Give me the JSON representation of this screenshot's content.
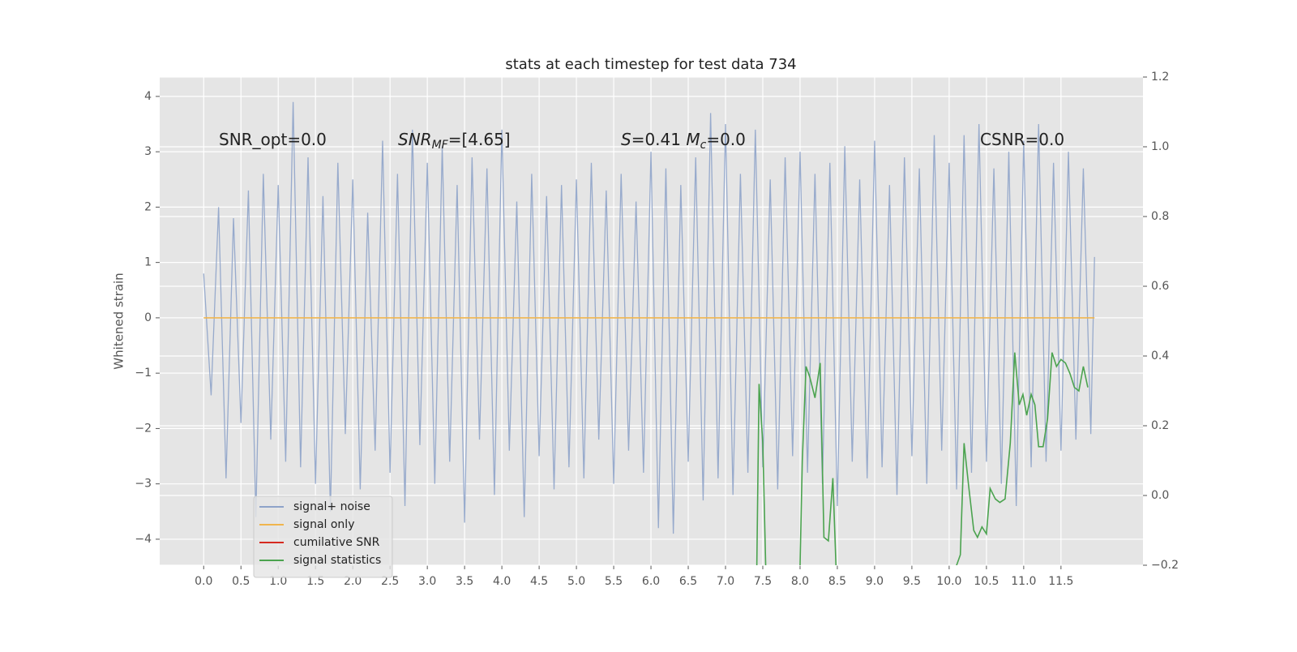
{
  "chart_data": {
    "type": "line",
    "title": "stats at each timestep for test data 734",
    "ylabel": "Whitened strain",
    "grid": true,
    "legend": "lower left",
    "annotations": [
      [
        {
          "text": "SNR_opt=0.0"
        }
      ],
      [
        {
          "text": "SNR",
          "italic": true
        },
        {
          "text": "MF",
          "italic": true,
          "sub": true
        },
        {
          "text": "=[4.65]"
        }
      ],
      [
        {
          "text": "S",
          "italic": true
        },
        {
          "text": "=0.41   "
        },
        {
          "text": "M",
          "italic": true
        },
        {
          "text": "c",
          "italic": true,
          "sub": true
        },
        {
          "text": "=0.0"
        }
      ],
      [
        {
          "text": "CSNR=0.0"
        }
      ]
    ],
    "xlim": [
      -0.59,
      12.6
    ],
    "ylim": [
      -4.47,
      4.35
    ],
    "y2lim": [
      -0.2,
      1.2
    ],
    "xticks": [
      {
        "value": 0,
        "label": "0.0"
      },
      {
        "value": 0.5,
        "label": "0.5"
      },
      {
        "value": 1,
        "label": "1.0"
      },
      {
        "value": 1.5,
        "label": "1.5"
      },
      {
        "value": 2,
        "label": "2.0"
      },
      {
        "value": 2.5,
        "label": "2.5"
      },
      {
        "value": 3,
        "label": "3.0"
      },
      {
        "value": 3.5,
        "label": "3.5"
      },
      {
        "value": 4,
        "label": "4.0"
      },
      {
        "value": 4.5,
        "label": "4.5"
      },
      {
        "value": 5,
        "label": "5.0"
      },
      {
        "value": 5.5,
        "label": "5.5"
      },
      {
        "value": 6,
        "label": "6.0"
      },
      {
        "value": 6.5,
        "label": "6.5"
      },
      {
        "value": 7,
        "label": "7.0"
      },
      {
        "value": 7.5,
        "label": "7.5"
      },
      {
        "value": 8,
        "label": "8.0"
      },
      {
        "value": 8.5,
        "label": "8.5"
      },
      {
        "value": 9,
        "label": "9.0"
      },
      {
        "value": 9.5,
        "label": "9.5"
      },
      {
        "value": 10,
        "label": "10.0"
      },
      {
        "value": 10.5,
        "label": "10.5"
      },
      {
        "value": 11,
        "label": "11.0"
      },
      {
        "value": 11.5,
        "label": "11.5"
      }
    ],
    "yticks": [
      {
        "value": -4,
        "label": "−4"
      },
      {
        "value": -3,
        "label": "−3"
      },
      {
        "value": -2,
        "label": "−2"
      },
      {
        "value": -1,
        "label": "−1"
      },
      0,
      1,
      2,
      3,
      4
    ],
    "y2ticks": [
      {
        "value": -0.2,
        "label": "−0.2"
      },
      {
        "value": 0,
        "label": "0.0"
      },
      {
        "value": 0.2,
        "label": "0.2"
      },
      {
        "value": 0.4,
        "label": "0.4"
      },
      {
        "value": 0.6,
        "label": "0.6"
      },
      {
        "value": 0.8,
        "label": "0.8"
      },
      {
        "value": 1,
        "label": "1.0"
      },
      {
        "value": 1.2,
        "label": "1.2"
      }
    ],
    "series": [
      {
        "name": "signal+ noise",
        "color": "#8ea3c9",
        "x": [
          0,
          0.1,
          0.2,
          0.3,
          0.4,
          0.5,
          0.6,
          0.7,
          0.8,
          0.9,
          1,
          1.1,
          1.2,
          1.3,
          1.4,
          1.5,
          1.6,
          1.7,
          1.8,
          1.9,
          2,
          2.1,
          2.2,
          2.3,
          2.4,
          2.5,
          2.6,
          2.7,
          2.8,
          2.9,
          3,
          3.1,
          3.2,
          3.3,
          3.4,
          3.5,
          3.6,
          3.7,
          3.8,
          3.9,
          4,
          4.1,
          4.2,
          4.3,
          4.4,
          4.5,
          4.6,
          4.7,
          4.8,
          4.9,
          5,
          5.1,
          5.2,
          5.3,
          5.4,
          5.5,
          5.6,
          5.7,
          5.8,
          5.9,
          6,
          6.1,
          6.2,
          6.3,
          6.4,
          6.5,
          6.6,
          6.7,
          6.8,
          6.9,
          7,
          7.1,
          7.2,
          7.3,
          7.4,
          7.5,
          7.6,
          7.7,
          7.8,
          7.9,
          8,
          8.1,
          8.2,
          8.3,
          8.4,
          8.5,
          8.6,
          8.7,
          8.8,
          8.9,
          9,
          9.1,
          9.2,
          9.3,
          9.4,
          9.5,
          9.6,
          9.7,
          9.8,
          9.9,
          10,
          10.1,
          10.2,
          10.3,
          10.4,
          10.5,
          10.6,
          10.7,
          10.8,
          10.9,
          11,
          11.1,
          11.2,
          11.3,
          11.4,
          11.5,
          11.6,
          11.7,
          11.8,
          11.9,
          11.95
        ],
        "values": [
          0.8,
          -1.4,
          2.0,
          -2.9,
          1.8,
          -1.9,
          2.3,
          -3.6,
          2.6,
          -2.2,
          2.4,
          -2.6,
          3.9,
          -2.7,
          2.9,
          -3.0,
          2.2,
          -3.5,
          2.8,
          -2.1,
          2.5,
          -3.1,
          1.9,
          -2.4,
          3.2,
          -2.8,
          2.6,
          -3.4,
          3.4,
          -2.3,
          2.8,
          -3.0,
          3.1,
          -2.6,
          2.4,
          -3.7,
          2.9,
          -2.2,
          2.7,
          -3.2,
          3.4,
          -2.4,
          2.1,
          -3.6,
          2.6,
          -2.5,
          2.2,
          -3.1,
          2.4,
          -2.7,
          2.5,
          -2.9,
          2.8,
          -2.2,
          2.3,
          -3.0,
          2.6,
          -2.4,
          2.1,
          -2.8,
          3.0,
          -3.8,
          2.7,
          -3.9,
          2.4,
          -2.6,
          2.9,
          -3.3,
          3.7,
          -2.9,
          3.5,
          -3.2,
          2.6,
          -2.8,
          3.4,
          -2.7,
          2.5,
          -3.1,
          2.9,
          -2.5,
          3.0,
          -2.8,
          2.6,
          -3.0,
          2.8,
          -3.4,
          3.1,
          -2.6,
          2.5,
          -2.9,
          3.2,
          -2.7,
          2.4,
          -3.2,
          2.9,
          -2.5,
          2.7,
          -3.0,
          3.3,
          -2.4,
          2.8,
          -3.1,
          3.3,
          -2.8,
          3.5,
          -2.6,
          2.7,
          -3.0,
          3.0,
          -3.4,
          3.2,
          -2.7,
          3.5,
          -2.6,
          2.8,
          -2.4,
          3.0,
          -2.2,
          2.7,
          -2.1,
          1.1
        ]
      },
      {
        "name": "signal only",
        "color": "#f0b54d",
        "x": [
          0,
          11.95
        ],
        "values": [
          0,
          0
        ]
      },
      {
        "name": "cumilative SNR",
        "color": "#d62a20",
        "x": [],
        "values": []
      },
      {
        "name": "signal statistics",
        "color": "#4ba34f",
        "axis": "y2",
        "x": [
          7.35,
          7.42,
          7.45,
          7.5,
          7.55,
          7.6,
          7.65,
          7.7,
          8.0,
          8.03,
          8.08,
          8.13,
          8.2,
          8.27,
          8.32,
          8.38,
          8.44,
          8.49,
          9.3,
          10.1,
          10.15,
          10.2,
          10.26,
          10.33,
          10.38,
          10.44,
          10.5,
          10.55,
          10.62,
          10.68,
          10.75,
          10.82,
          10.88,
          10.94,
          10.99,
          11.04,
          11.1,
          11.15,
          11.2,
          11.26,
          11.32,
          11.38,
          11.44,
          11.5,
          11.56,
          11.62,
          11.68,
          11.74,
          11.8,
          11.86
        ],
        "values": [
          -0.35,
          -0.2,
          0.32,
          0.15,
          -0.3,
          -0.25,
          -0.22,
          -0.35,
          -0.2,
          0.1,
          0.37,
          0.34,
          0.28,
          0.38,
          -0.12,
          -0.13,
          0.05,
          -0.25,
          -0.5,
          -0.2,
          -0.17,
          0.15,
          0.03,
          -0.1,
          -0.12,
          -0.09,
          -0.11,
          0.02,
          -0.01,
          -0.02,
          -0.01,
          0.15,
          0.41,
          0.26,
          0.29,
          0.23,
          0.29,
          0.26,
          0.14,
          0.14,
          0.22,
          0.41,
          0.37,
          0.39,
          0.38,
          0.35,
          0.31,
          0.3,
          0.37,
          0.31
        ]
      }
    ]
  }
}
